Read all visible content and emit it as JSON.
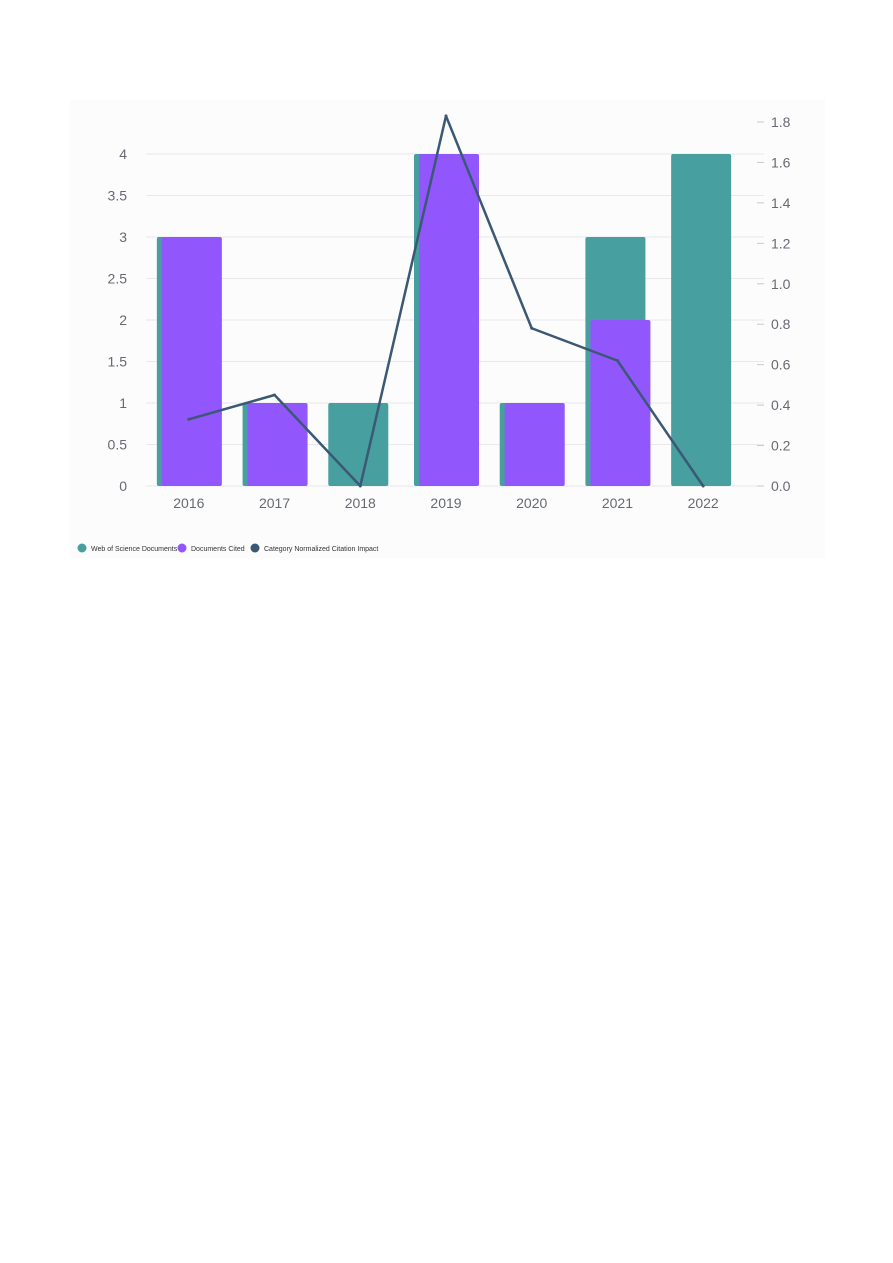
{
  "chart_data": {
    "type": "bar",
    "categories": [
      "2016",
      "2017",
      "2018",
      "2019",
      "2020",
      "2021",
      "2022"
    ],
    "series": [
      {
        "name": "Web of Science Documents",
        "type": "bar",
        "axis": "left",
        "values": [
          3,
          1,
          1,
          4,
          1,
          3,
          4
        ],
        "color": "#479f9f"
      },
      {
        "name": "Documents Cited",
        "type": "bar",
        "axis": "left",
        "values": [
          3,
          1,
          0,
          4,
          1,
          2,
          0
        ],
        "color": "#9157fd"
      },
      {
        "name": "Category Normalized Citation Impact",
        "type": "line",
        "axis": "right",
        "values": [
          0.33,
          0.45,
          0.0,
          1.83,
          0.78,
          0.62,
          0.0
        ],
        "color": "#3b5874"
      }
    ],
    "y_left": {
      "ticks": [
        "0",
        "0.5",
        "1",
        "1.5",
        "2",
        "2.5",
        "3",
        "3.5",
        "4"
      ],
      "ylim": [
        0,
        4
      ]
    },
    "y_right": {
      "ticks": [
        "0.0",
        "0.2",
        "0.4",
        "0.6",
        "0.8",
        "1.0",
        "1.2",
        "1.4",
        "1.6",
        "1.8"
      ],
      "ylim": [
        0,
        1.8
      ]
    },
    "title": "",
    "xlabel": "",
    "ylabel": "",
    "grid": true,
    "legend_position": "bottom-left"
  }
}
